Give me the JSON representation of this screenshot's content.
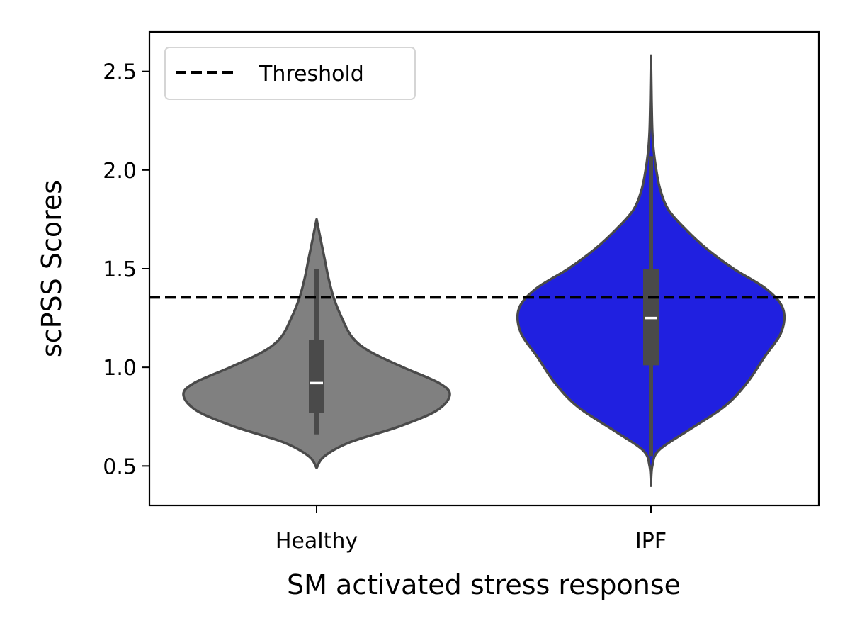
{
  "chart_data": {
    "type": "violin",
    "xlabel": "SM activated stress response",
    "ylabel": "scPSS Scores",
    "ylim": [
      0.3,
      2.7
    ],
    "yticks": [
      0.5,
      1.0,
      1.5,
      2.0,
      2.5
    ],
    "ytick_labels": [
      "0.5",
      "1.0",
      "1.5",
      "2.0",
      "2.5"
    ],
    "grid": false,
    "legend": {
      "placement": "top-left",
      "entries": [
        {
          "label": "Threshold",
          "style": "dashed",
          "color": "#000000"
        }
      ]
    },
    "threshold": 1.355,
    "categories": [
      "Healthy",
      "IPF"
    ],
    "violins": [
      {
        "category": "Healthy",
        "color": "#808080",
        "min": 0.49,
        "max": 1.75,
        "median": 0.92,
        "q1": 0.77,
        "q3": 1.14,
        "whisker_low": 0.66,
        "whisker_high": 1.5,
        "density": [
          [
            0.49,
            0.0
          ],
          [
            0.55,
            0.06
          ],
          [
            0.62,
            0.25
          ],
          [
            0.7,
            0.62
          ],
          [
            0.78,
            0.9
          ],
          [
            0.86,
            1.0
          ],
          [
            0.92,
            0.92
          ],
          [
            1.0,
            0.65
          ],
          [
            1.08,
            0.4
          ],
          [
            1.15,
            0.27
          ],
          [
            1.25,
            0.19
          ],
          [
            1.35,
            0.13
          ],
          [
            1.45,
            0.09
          ],
          [
            1.55,
            0.06
          ],
          [
            1.65,
            0.03
          ],
          [
            1.75,
            0.0
          ]
        ]
      },
      {
        "category": "IPF",
        "color": "#2020e0",
        "min": 0.4,
        "max": 2.58,
        "median": 1.25,
        "q1": 1.01,
        "q3": 1.5,
        "whisker_low": 0.55,
        "whisker_high": 2.07,
        "density": [
          [
            0.4,
            0.0
          ],
          [
            0.5,
            0.01
          ],
          [
            0.58,
            0.06
          ],
          [
            0.68,
            0.28
          ],
          [
            0.8,
            0.55
          ],
          [
            0.92,
            0.72
          ],
          [
            1.05,
            0.85
          ],
          [
            1.18,
            0.98
          ],
          [
            1.3,
            0.99
          ],
          [
            1.4,
            0.86
          ],
          [
            1.5,
            0.62
          ],
          [
            1.6,
            0.42
          ],
          [
            1.7,
            0.26
          ],
          [
            1.8,
            0.13
          ],
          [
            1.9,
            0.07
          ],
          [
            2.0,
            0.04
          ],
          [
            2.1,
            0.02
          ],
          [
            2.2,
            0.01
          ],
          [
            2.35,
            0.005
          ],
          [
            2.58,
            0.0
          ]
        ]
      }
    ]
  }
}
